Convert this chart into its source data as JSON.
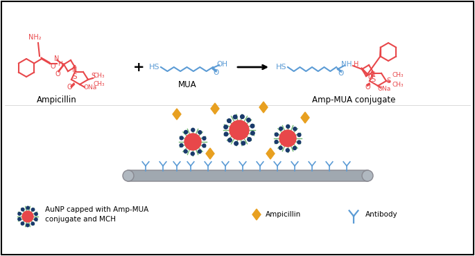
{
  "bg_color": "#ffffff",
  "border_color": "#000000",
  "red_color": "#e8474a",
  "blue_color": "#5b9bd5",
  "gold_color": "#e8a020",
  "green_color": "#70b870",
  "dark_blue": "#1a3a6b",
  "gray_color": "#a0a8b0",
  "label_ampicillin": "Ampicillin",
  "label_mua": "MUA",
  "label_ampmua": "Amp-MUA conjugate",
  "legend_aunp": "AuNP capped with Amp-MUA\nconjugate and MCH",
  "legend_ampicillin": "Ampicillin",
  "legend_antibody": "Antibody",
  "plus_symbol": "+",
  "arrow_color": "#222222"
}
